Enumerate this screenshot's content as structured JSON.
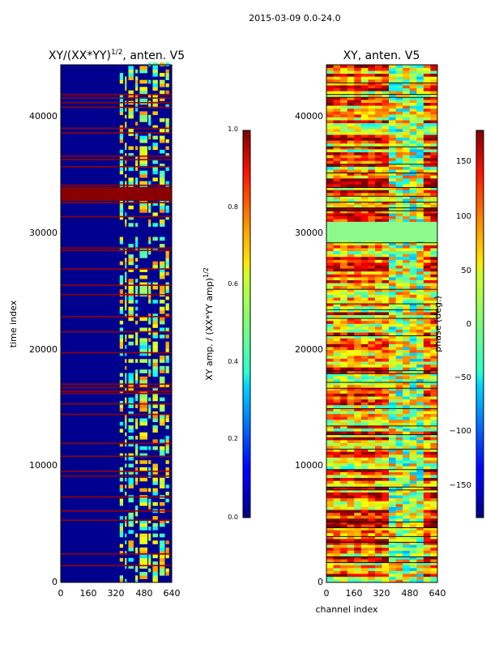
{
  "figure": {
    "suptitle": "2015-03-09 0.0-24.0"
  },
  "chart_data": [
    {
      "type": "heatmap",
      "title": "XY/(XX*YY)",
      "title_sup": "1/2",
      "title_suffix": ", anten. V5",
      "xlabel": "",
      "ylabel": "time index",
      "xlim": [
        0,
        640
      ],
      "ylim": [
        0,
        44500
      ],
      "x_ticks": [
        0,
        160,
        320,
        480,
        640
      ],
      "x_tick_labels": [
        "0",
        "160",
        "320",
        "480",
        "640"
      ],
      "y_ticks": [
        0,
        10000,
        20000,
        30000,
        40000
      ],
      "y_tick_labels": [
        "0",
        "10000",
        "20000",
        "30000",
        "40000"
      ],
      "colormap": "jet",
      "colorbar": {
        "label": "XY amp. / (XX*YY amp)",
        "label_sup": "1/2",
        "range": [
          0.0,
          1.0
        ],
        "ticks": [
          0.0,
          0.2,
          0.4,
          0.6,
          0.8,
          1.0
        ],
        "tick_labels": [
          "0.0",
          "0.2",
          "0.4",
          "0.6",
          "0.8",
          "1.0"
        ]
      }
    },
    {
      "type": "heatmap",
      "title": "XY, anten. V5",
      "xlabel": "channel index",
      "ylabel": "",
      "xlim": [
        0,
        640
      ],
      "ylim": [
        0,
        44500
      ],
      "x_ticks": [
        0,
        160,
        320,
        480,
        640
      ],
      "x_tick_labels": [
        "0",
        "160",
        "320",
        "480",
        "640"
      ],
      "y_ticks": [
        0,
        10000,
        20000,
        30000,
        40000
      ],
      "y_tick_labels": [
        "0",
        "10000",
        "20000",
        "30000",
        "40000"
      ],
      "colormap": "jet",
      "colorbar": {
        "label": "phase (deg.)",
        "range": [
          -180,
          180
        ],
        "ticks": [
          150,
          100,
          50,
          0,
          -50,
          -100,
          -150
        ],
        "tick_labels": [
          "150",
          "100",
          "50",
          "0",
          "−50",
          "−100",
          "−150"
        ]
      }
    }
  ]
}
